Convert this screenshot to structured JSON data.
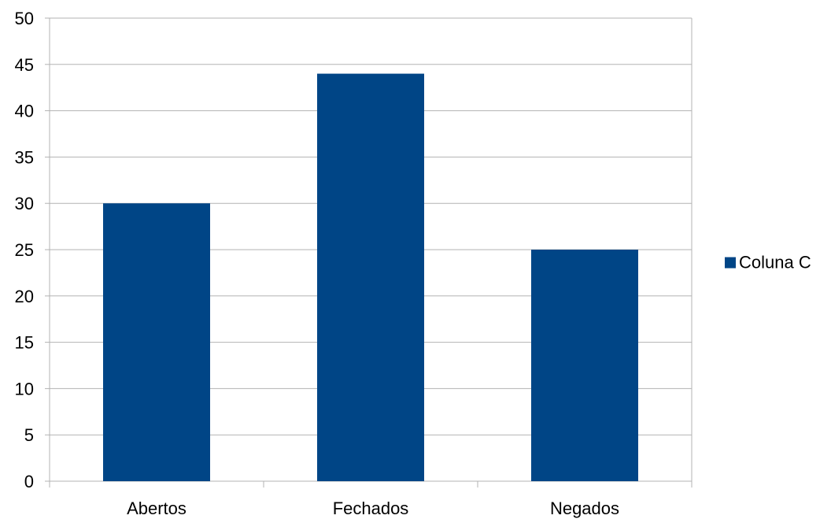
{
  "chart_data": {
    "type": "bar",
    "title": "",
    "xlabel": "",
    "ylabel": "",
    "categories": [
      "Abertos",
      "Fechados",
      "Negados"
    ],
    "series": [
      {
        "name": "Coluna C",
        "values": [
          30,
          44,
          25
        ],
        "color": "#004586"
      }
    ],
    "ylim": [
      0,
      50
    ],
    "yticks": [
      0,
      5,
      10,
      15,
      20,
      25,
      30,
      35,
      40,
      45,
      50
    ],
    "grid": true,
    "legend_position": "right"
  }
}
